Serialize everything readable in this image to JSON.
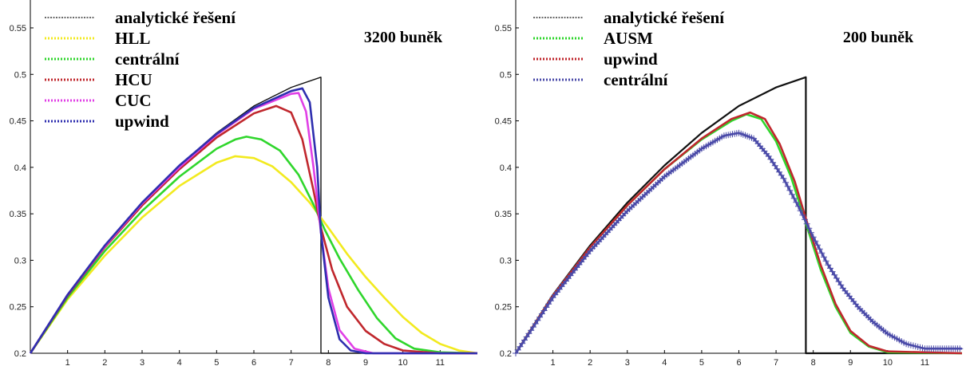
{
  "chart_data": [
    {
      "type": "line",
      "note": "3200 buněk",
      "xlim": [
        0,
        12
      ],
      "ylim": [
        0.2,
        0.58
      ],
      "x_ticks": [
        1,
        2,
        3,
        4,
        5,
        6,
        7,
        8,
        9,
        10,
        11
      ],
      "y_ticks": [
        0.25,
        0.3,
        0.35,
        0.4,
        0.45,
        0.5,
        0.55
      ],
      "legend_position": "top-left",
      "grid": false,
      "series": [
        {
          "name": "analytické řešení",
          "color": "#111111",
          "style": "dashed",
          "points": [
            [
              0,
              0.2
            ],
            [
              1,
              0.263
            ],
            [
              2,
              0.316
            ],
            [
              3,
              0.362
            ],
            [
              4,
              0.402
            ],
            [
              5,
              0.437
            ],
            [
              6,
              0.466
            ],
            [
              7,
              0.486
            ],
            [
              7.8,
              0.497
            ],
            [
              7.8,
              0.2
            ],
            [
              12,
              0.2
            ]
          ]
        },
        {
          "name": "HLL",
          "color": "#f2ea1f",
          "style": "dotted",
          "points": [
            [
              0,
              0.2
            ],
            [
              1,
              0.258
            ],
            [
              2,
              0.305
            ],
            [
              3,
              0.346
            ],
            [
              4,
              0.38
            ],
            [
              5,
              0.405
            ],
            [
              5.5,
              0.412
            ],
            [
              6,
              0.41
            ],
            [
              6.5,
              0.401
            ],
            [
              7,
              0.384
            ],
            [
              7.5,
              0.362
            ],
            [
              8,
              0.335
            ],
            [
              8.5,
              0.307
            ],
            [
              9,
              0.282
            ],
            [
              9.5,
              0.26
            ],
            [
              10,
              0.239
            ],
            [
              10.5,
              0.222
            ],
            [
              11,
              0.21
            ],
            [
              11.5,
              0.203
            ],
            [
              12,
              0.2
            ]
          ]
        },
        {
          "name": "centrální",
          "color": "#2fd62c",
          "style": "dotted",
          "points": [
            [
              0,
              0.2
            ],
            [
              1,
              0.26
            ],
            [
              2,
              0.31
            ],
            [
              3,
              0.353
            ],
            [
              4,
              0.39
            ],
            [
              5,
              0.42
            ],
            [
              5.5,
              0.43
            ],
            [
              5.8,
              0.433
            ],
            [
              6.2,
              0.43
            ],
            [
              6.7,
              0.418
            ],
            [
              7.2,
              0.392
            ],
            [
              7.6,
              0.36
            ],
            [
              7.9,
              0.333
            ],
            [
              8.3,
              0.302
            ],
            [
              8.8,
              0.268
            ],
            [
              9.3,
              0.238
            ],
            [
              9.8,
              0.216
            ],
            [
              10.3,
              0.205
            ],
            [
              11,
              0.201
            ],
            [
              12,
              0.2
            ]
          ]
        },
        {
          "name": "HCU",
          "color": "#c0272d",
          "style": "dotted",
          "points": [
            [
              0,
              0.2
            ],
            [
              1,
              0.262
            ],
            [
              2,
              0.314
            ],
            [
              3,
              0.359
            ],
            [
              4,
              0.398
            ],
            [
              5,
              0.432
            ],
            [
              6,
              0.458
            ],
            [
              6.6,
              0.466
            ],
            [
              7,
              0.459
            ],
            [
              7.3,
              0.43
            ],
            [
              7.6,
              0.375
            ],
            [
              7.8,
              0.335
            ],
            [
              8.1,
              0.29
            ],
            [
              8.5,
              0.25
            ],
            [
              9,
              0.224
            ],
            [
              9.5,
              0.21
            ],
            [
              10,
              0.203
            ],
            [
              11,
              0.2
            ],
            [
              12,
              0.2
            ]
          ]
        },
        {
          "name": "CUC",
          "color": "#e040e6",
          "style": "dotted",
          "points": [
            [
              0,
              0.2
            ],
            [
              1,
              0.263
            ],
            [
              2,
              0.315
            ],
            [
              3,
              0.361
            ],
            [
              4,
              0.4
            ],
            [
              5,
              0.435
            ],
            [
              6,
              0.463
            ],
            [
              7,
              0.479
            ],
            [
              7.2,
              0.48
            ],
            [
              7.4,
              0.46
            ],
            [
              7.6,
              0.4
            ],
            [
              7.8,
              0.33
            ],
            [
              8,
              0.27
            ],
            [
              8.3,
              0.225
            ],
            [
              8.7,
              0.205
            ],
            [
              9.2,
              0.2
            ],
            [
              12,
              0.2
            ]
          ]
        },
        {
          "name": "upwind",
          "color": "#2f2faf",
          "style": "dotted",
          "points": [
            [
              0,
              0.2
            ],
            [
              1,
              0.263
            ],
            [
              2,
              0.316
            ],
            [
              3,
              0.362
            ],
            [
              4,
              0.402
            ],
            [
              5,
              0.436
            ],
            [
              6,
              0.464
            ],
            [
              7,
              0.482
            ],
            [
              7.3,
              0.485
            ],
            [
              7.5,
              0.47
            ],
            [
              7.7,
              0.4
            ],
            [
              7.8,
              0.33
            ],
            [
              8,
              0.26
            ],
            [
              8.3,
              0.215
            ],
            [
              8.6,
              0.203
            ],
            [
              9,
              0.2
            ],
            [
              12,
              0.2
            ]
          ]
        }
      ]
    },
    {
      "type": "line",
      "note": "200 buněk",
      "xlim": [
        0,
        12
      ],
      "ylim": [
        0.2,
        0.58
      ],
      "x_ticks": [
        1,
        2,
        3,
        4,
        5,
        6,
        7,
        8,
        9,
        10,
        11
      ],
      "y_ticks": [
        0.25,
        0.3,
        0.35,
        0.4,
        0.45,
        0.5,
        0.55
      ],
      "legend_position": "top-left",
      "grid": false,
      "series": [
        {
          "name": "analytické řešení",
          "color": "#111111",
          "style": "solid",
          "points": [
            [
              0,
              0.2
            ],
            [
              1,
              0.263
            ],
            [
              2,
              0.316
            ],
            [
              3,
              0.362
            ],
            [
              4,
              0.402
            ],
            [
              5,
              0.437
            ],
            [
              6,
              0.466
            ],
            [
              7,
              0.486
            ],
            [
              7.8,
              0.497
            ],
            [
              7.8,
              0.2
            ],
            [
              12,
              0.2
            ]
          ]
        },
        {
          "name": "AUSM",
          "color": "#2fd62c",
          "style": "dotted",
          "points": [
            [
              0,
              0.2
            ],
            [
              1,
              0.262
            ],
            [
              2,
              0.314
            ],
            [
              3,
              0.359
            ],
            [
              4,
              0.398
            ],
            [
              5,
              0.43
            ],
            [
              5.8,
              0.45
            ],
            [
              6.2,
              0.457
            ],
            [
              6.6,
              0.452
            ],
            [
              7,
              0.428
            ],
            [
              7.4,
              0.39
            ],
            [
              7.8,
              0.34
            ],
            [
              8.2,
              0.29
            ],
            [
              8.6,
              0.25
            ],
            [
              9,
              0.222
            ],
            [
              9.5,
              0.207
            ],
            [
              10,
              0.201
            ],
            [
              12,
              0.2
            ]
          ]
        },
        {
          "name": "upwind",
          "color": "#c0272d",
          "style": "dotted",
          "points": [
            [
              0,
              0.2
            ],
            [
              1,
              0.262
            ],
            [
              2,
              0.314
            ],
            [
              3,
              0.359
            ],
            [
              4,
              0.398
            ],
            [
              5,
              0.431
            ],
            [
              5.8,
              0.452
            ],
            [
              6.3,
              0.459
            ],
            [
              6.7,
              0.452
            ],
            [
              7.1,
              0.425
            ],
            [
              7.5,
              0.385
            ],
            [
              7.8,
              0.345
            ],
            [
              8.2,
              0.295
            ],
            [
              8.6,
              0.253
            ],
            [
              9,
              0.224
            ],
            [
              9.5,
              0.208
            ],
            [
              10,
              0.202
            ],
            [
              12,
              0.2
            ]
          ]
        },
        {
          "name": "centrální",
          "color": "#4a4aa8",
          "style": "plus-markers",
          "points": [
            [
              0,
              0.2
            ],
            [
              1,
              0.26
            ],
            [
              2,
              0.31
            ],
            [
              3,
              0.353
            ],
            [
              4,
              0.39
            ],
            [
              5,
              0.42
            ],
            [
              5.6,
              0.434
            ],
            [
              6,
              0.437
            ],
            [
              6.4,
              0.431
            ],
            [
              6.8,
              0.412
            ],
            [
              7.2,
              0.388
            ],
            [
              7.6,
              0.358
            ],
            [
              8,
              0.325
            ],
            [
              8.4,
              0.295
            ],
            [
              8.8,
              0.27
            ],
            [
              9.2,
              0.25
            ],
            [
              9.6,
              0.234
            ],
            [
              10,
              0.221
            ],
            [
              10.5,
              0.21
            ],
            [
              11,
              0.205
            ],
            [
              12,
              0.205
            ]
          ]
        }
      ]
    }
  ]
}
